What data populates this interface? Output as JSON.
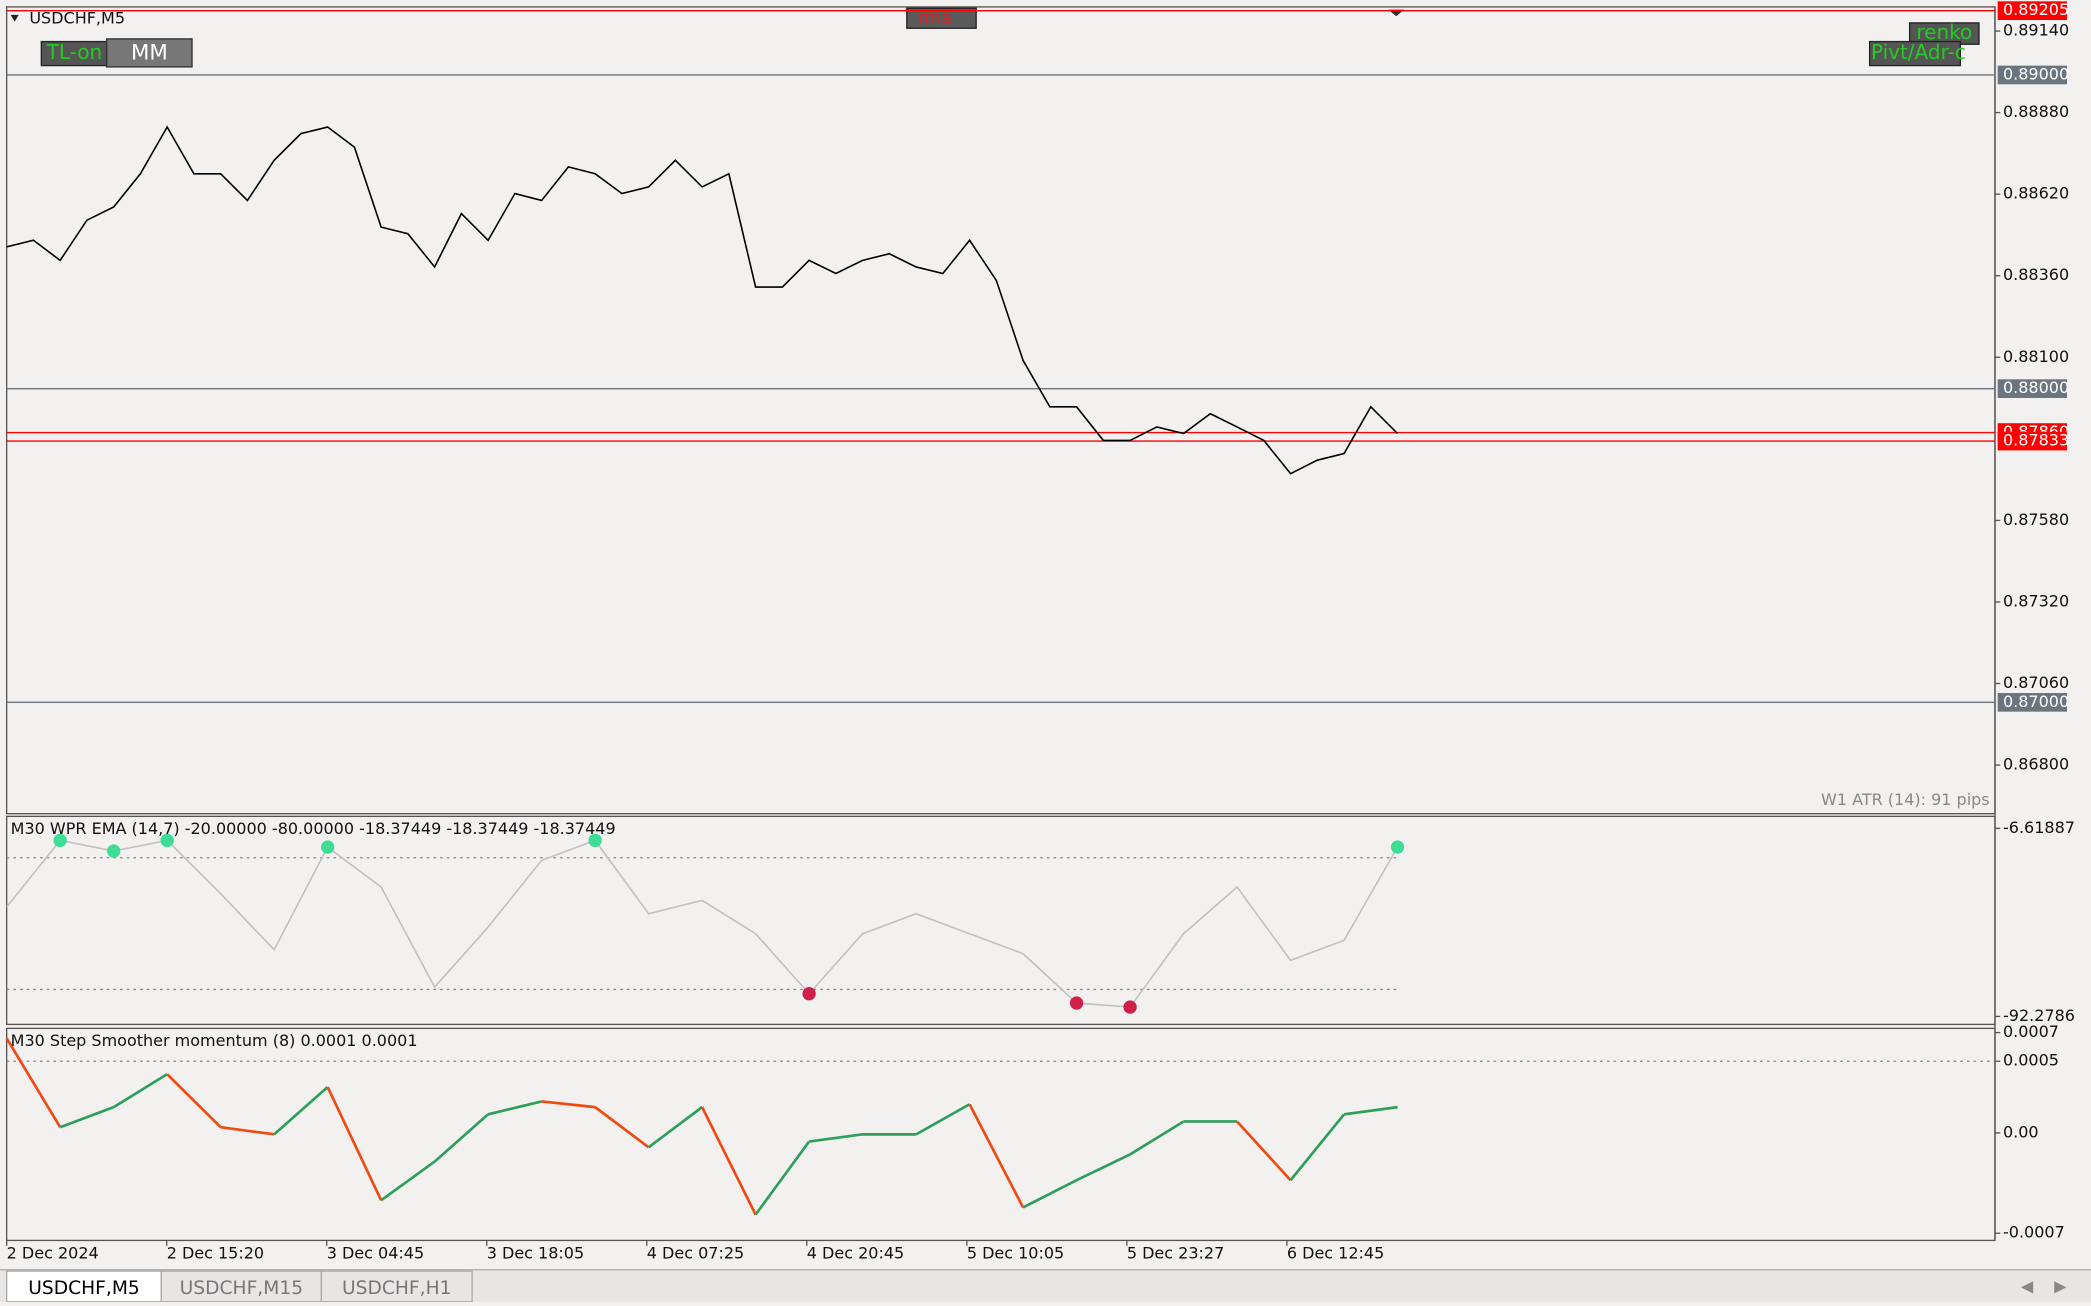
{
  "buttons": {
    "rma": "rma",
    "tl_on": "TL-on",
    "mm": "MM",
    "renko": "renko",
    "pivot": "Pivt/Adr-c"
  },
  "main_chart": {
    "title": "USDCHF,M5",
    "type": "line",
    "color": "#000000",
    "values": [
      0.88452,
      0.88473,
      0.88409,
      0.88537,
      0.88579,
      0.88685,
      0.88834,
      0.88685,
      0.88685,
      0.886,
      0.88728,
      0.88813,
      0.88834,
      0.8877,
      0.88515,
      0.88494,
      0.88388,
      0.88558,
      0.88473,
      0.88622,
      0.886,
      0.88707,
      0.88685,
      0.88622,
      0.88643,
      0.88728,
      0.88643,
      0.88685,
      0.88324,
      0.88324,
      0.88409,
      0.88367,
      0.88409,
      0.8843,
      0.88388,
      0.88367,
      0.88473,
      0.88345,
      0.8809,
      0.87942,
      0.87942,
      0.87835,
      0.87835,
      0.87878,
      0.87857,
      0.8792,
      0.87878,
      0.87835,
      0.87729,
      0.87772,
      0.87793,
      0.87942,
      0.87857
    ],
    "ylim": [
      0.86645,
      0.89217
    ],
    "yticks": [
      {
        "value": 0.8914,
        "label": "0.89140"
      },
      {
        "value": 0.8888,
        "label": "0.88880"
      },
      {
        "value": 0.8862,
        "label": "0.88620"
      },
      {
        "value": 0.8836,
        "label": "0.88360"
      },
      {
        "value": 0.881,
        "label": "0.88100"
      },
      {
        "value": 0.8758,
        "label": "0.87580"
      },
      {
        "value": 0.8732,
        "label": "0.87320"
      },
      {
        "value": 0.8706,
        "label": "0.87060"
      },
      {
        "value": 0.868,
        "label": "0.86800"
      }
    ],
    "levels": [
      {
        "value": 0.89,
        "label": "0.89000"
      },
      {
        "value": 0.88,
        "label": "0.88000"
      },
      {
        "value": 0.87,
        "label": "0.87000"
      }
    ],
    "level_color": "#6b7580",
    "price_markers": [
      0.89205,
      {
        "value": 0.8786,
        "label": "0.87860"
      },
      0.87833
    ],
    "marker_color": "#ff0000",
    "atr_text": "W1 ATR (14): 91 pips"
  },
  "wpr_panel": {
    "title": "M30 WPR  EMA (14,7) -20.00000 -80.00000 -18.37449 -18.37449 -18.37449",
    "type": "line",
    "color": "#c0c0c0",
    "high_color": "#3ddc97",
    "low_color": "#d0204a",
    "values": [
      -42.46,
      -12.09,
      -16.95,
      -12.09,
      -36.39,
      -61.9,
      -15.13,
      -33.35,
      -78.91,
      -51.58,
      -21.2,
      -12.09,
      -45.5,
      -39.43,
      -54.61,
      -81.95,
      -54.61,
      -45.5,
      -54.61,
      -63.73,
      -86.2,
      -88.03,
      -54.61,
      -33.35,
      -66.76,
      -57.65,
      -15.13
    ],
    "ylim": [
      -95.92,
      -1.15
    ],
    "yticks": [
      -6.61887,
      -92.2786
    ],
    "levels": [
      -20,
      -80
    ]
  },
  "momentum_panel": {
    "title": "M30 Step Smoother momentum (8) 0.0001 0.0001",
    "type": "line",
    "up_color": "#2e9e5b",
    "down_color": "#f04a12",
    "values": [
      0.00066,
      4e-05,
      0.00018,
      0.00041,
      4e-05,
      -1e-05,
      0.00032,
      -0.00047,
      -0.0002,
      0.00013,
      0.00022,
      0.00018,
      -0.0001,
      0.00018,
      -0.00057,
      -6e-05,
      -1e-05,
      -1e-05,
      0.0002,
      -0.00052,
      -0.00033,
      -0.00015,
      8e-05,
      8e-05,
      -0.00033,
      0.00013,
      0.00018
    ],
    "ylim": [
      -0.00075,
      0.00072
    ],
    "yticks": [
      0.0007,
      0.0005,
      {
        "value": 0,
        "label": "0.00"
      },
      -0.0007
    ],
    "levels": [
      0.0005
    ]
  },
  "time_axis": [
    "2 Dec 2024",
    "2 Dec 15:20",
    "3 Dec 04:45",
    "3 Dec 18:05",
    "4 Dec 07:25",
    "4 Dec 20:45",
    "5 Dec 10:05",
    "5 Dec 23:27",
    "6 Dec 12:45"
  ],
  "tabs": [
    "USDCHF,M5",
    "USDCHF,M15",
    "USDCHF,H1"
  ]
}
